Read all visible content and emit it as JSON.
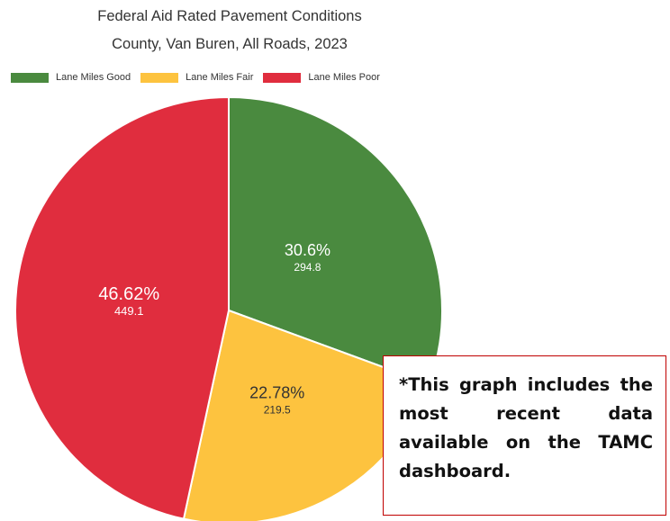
{
  "chart_data": {
    "type": "pie",
    "title": "Federal Aid Rated Pavement Conditions",
    "subtitle": "County, Van Buren, All Roads, 2023",
    "legend_position": "top-left",
    "slices": [
      {
        "name": "Lane Miles Good",
        "value": 294.8,
        "percent_label": "30.6%",
        "value_label": "294.8",
        "color": "#4a8a3f"
      },
      {
        "name": "Lane Miles Fair",
        "value": 219.5,
        "percent_label": "22.78%",
        "value_label": "219.5",
        "color": "#fdc33f"
      },
      {
        "name": "Lane Miles Poor",
        "value": 449.1,
        "percent_label": "46.62%",
        "value_label": "449.1",
        "color": "#e02d3e"
      }
    ]
  },
  "note": {
    "text": "*This graph includes the most recent data available on the TAMC dashboard."
  }
}
